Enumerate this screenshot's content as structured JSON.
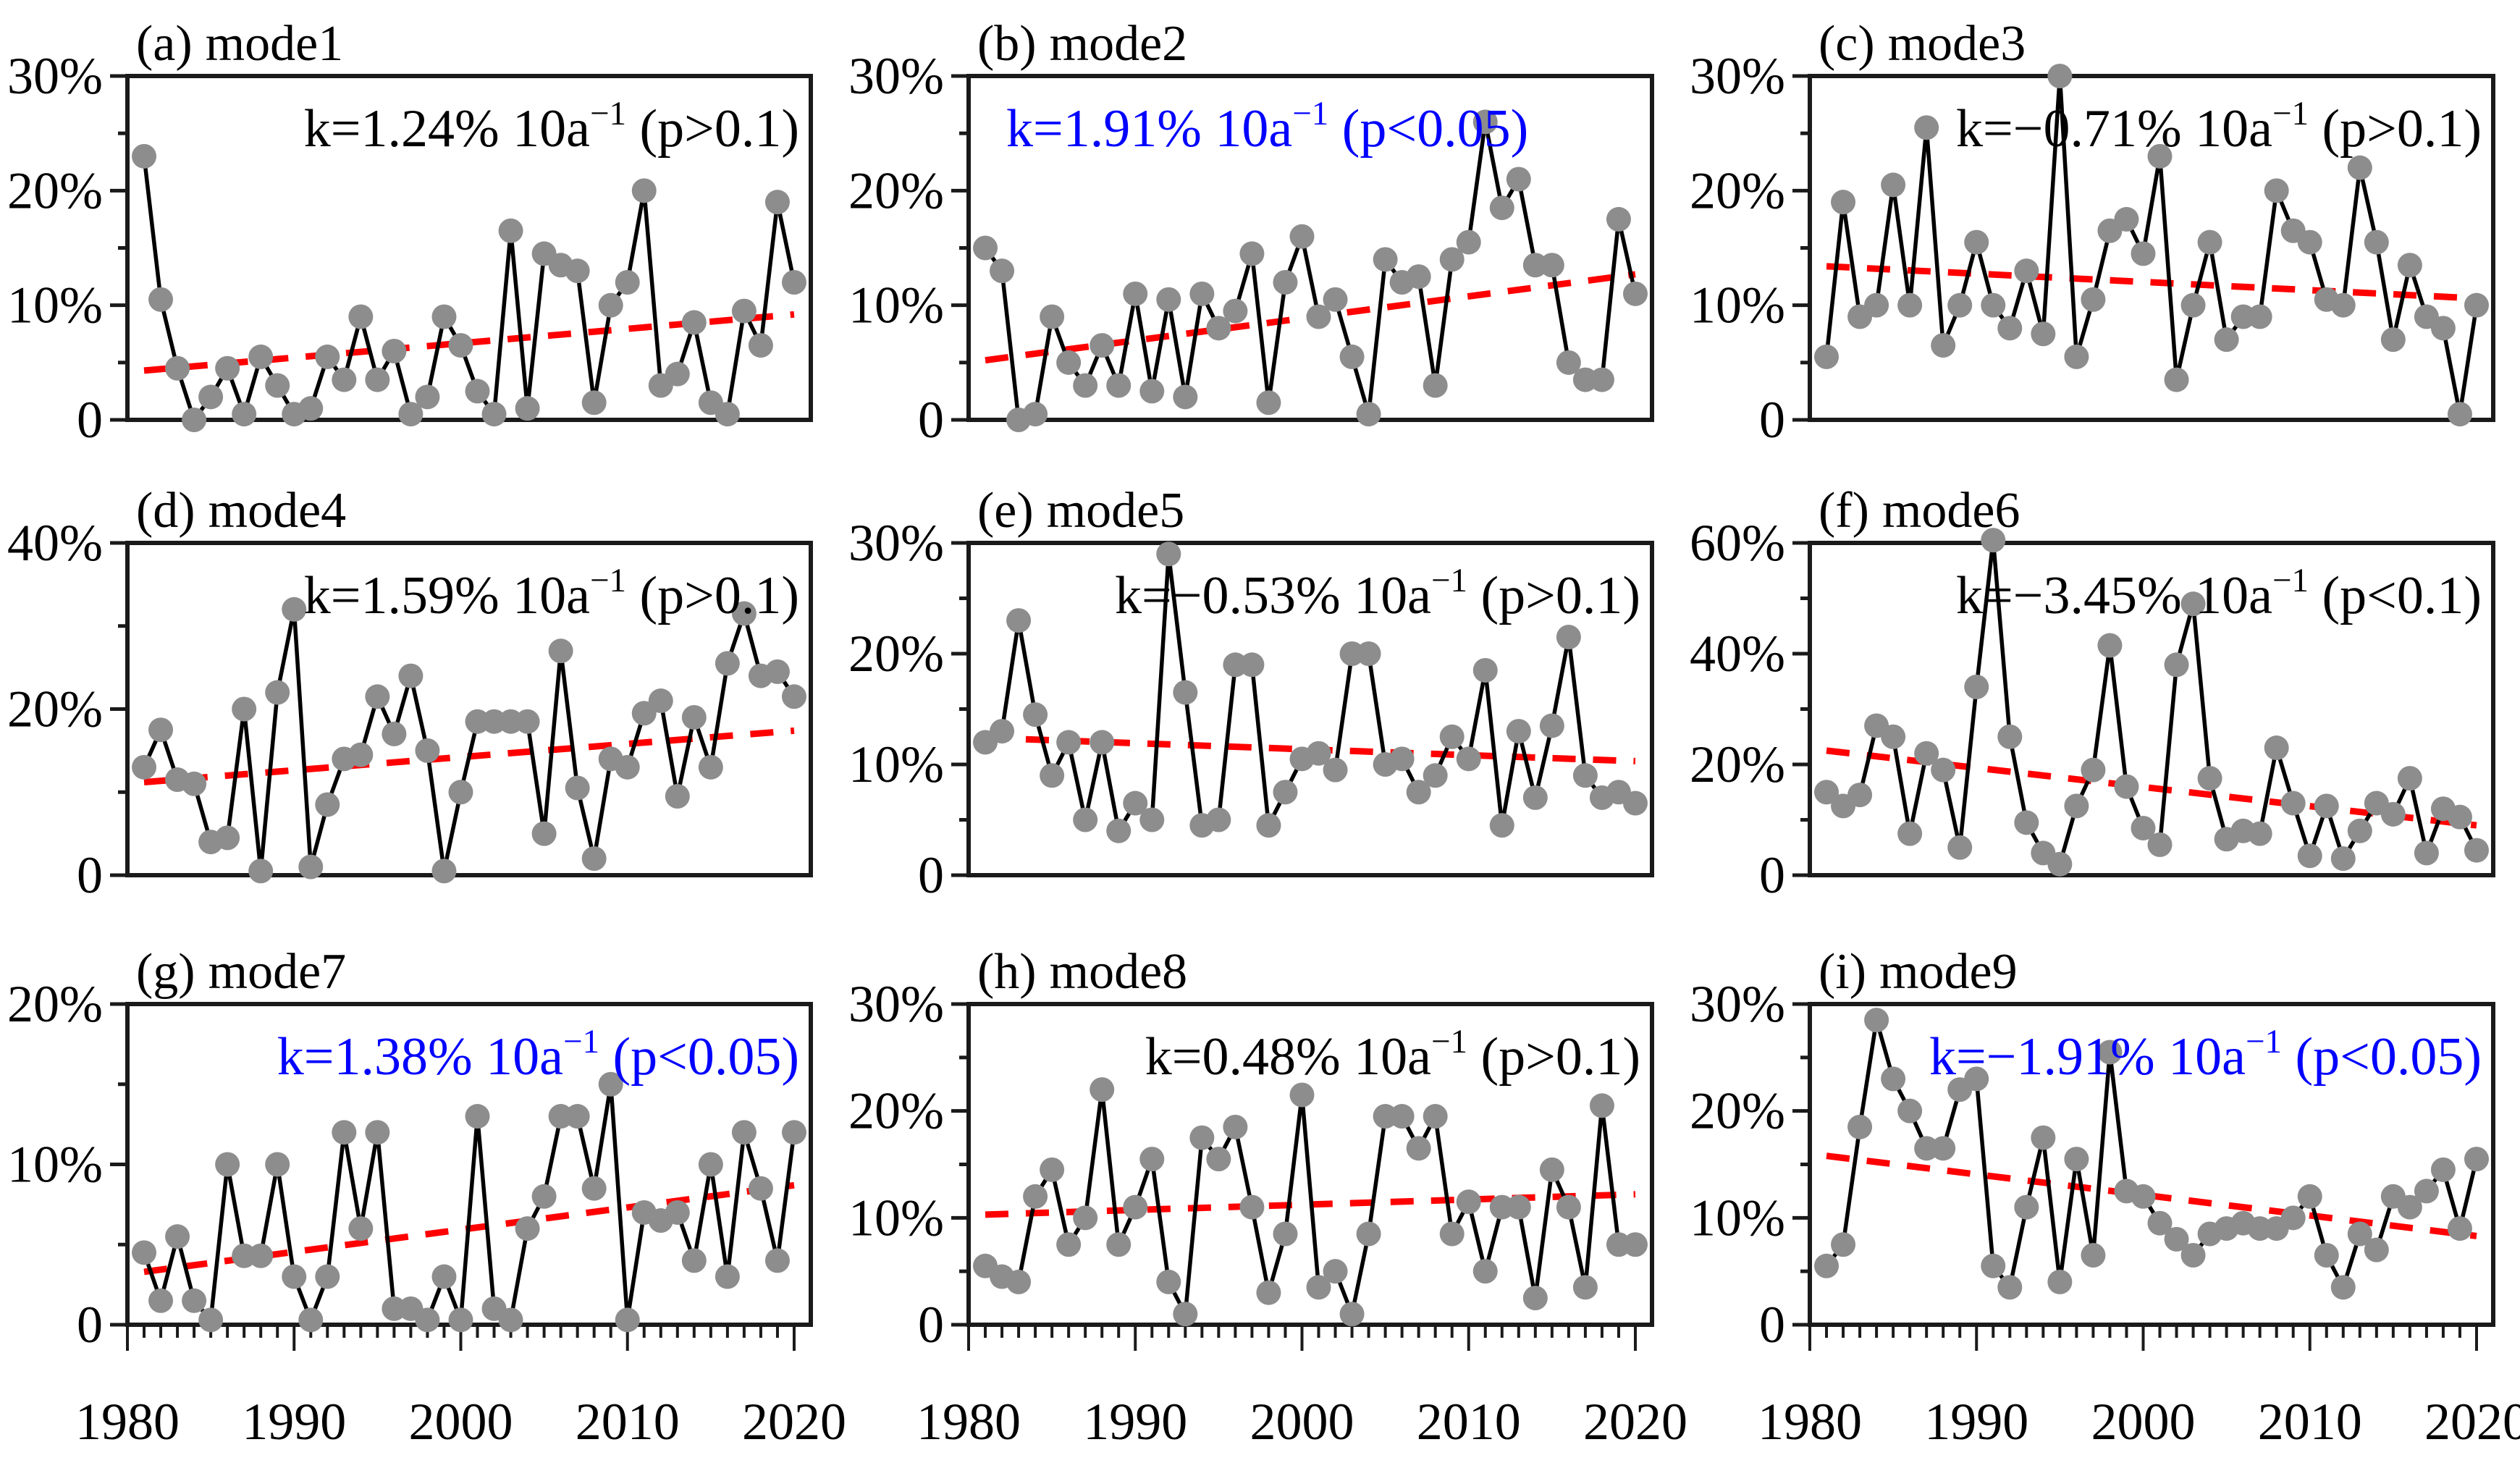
{
  "figure": {
    "background": "#ffffff",
    "dot_color": "#8d8d8d",
    "line_color": "#000000",
    "trend_color": "#ff0000",
    "axis_color": "#1a1a1a",
    "blue_annotation_color": "#0000ff",
    "black_annotation_color": "#000000"
  },
  "x_axis": {
    "domain": [
      1980,
      2021
    ],
    "data_years_start": 1981,
    "tick_years": [
      1980,
      1990,
      2000,
      2010,
      2020
    ],
    "tick_labels": [
      "1980",
      "1990",
      "2000",
      "2010",
      "2020"
    ]
  },
  "chart_data": [
    {
      "type": "line",
      "panel_label": "(a)",
      "title": "mode1",
      "annotation": {
        "k": "k=1.24% 10a",
        "sup": "−1",
        "p": " (p>0.1)",
        "color": "#000000",
        "align": "right"
      },
      "ylim": [
        0,
        30
      ],
      "yticks": [
        {
          "v": 0,
          "label": "0"
        },
        {
          "v": 10,
          "label": "10%"
        },
        {
          "v": 20,
          "label": "20%"
        },
        {
          "v": 30,
          "label": "30%"
        }
      ],
      "yminor": [
        5,
        15,
        25
      ],
      "trend": {
        "start": 4.3,
        "end": 9.2
      },
      "values": [
        23,
        10.5,
        4.5,
        0,
        2,
        4.5,
        0.5,
        5.5,
        3,
        0.5,
        1,
        5.5,
        3.5,
        9,
        3.5,
        6,
        0.5,
        2,
        9,
        6.5,
        2.5,
        0.5,
        16.5,
        1,
        14.5,
        13.5,
        13,
        1.5,
        10,
        12,
        20,
        3,
        4,
        8.5,
        1.5,
        0.5,
        9.5,
        6.5,
        19,
        12
      ]
    },
    {
      "type": "line",
      "panel_label": "(b)",
      "title": "mode2",
      "annotation": {
        "k": "k=1.91% 10a",
        "sup": "−1",
        "p": " (p<0.05)",
        "color": "#0000ff",
        "align": "left"
      },
      "ylim": [
        0,
        30
      ],
      "yticks": [
        {
          "v": 0,
          "label": "0"
        },
        {
          "v": 10,
          "label": "10%"
        },
        {
          "v": 20,
          "label": "20%"
        },
        {
          "v": 30,
          "label": "30%"
        }
      ],
      "yminor": [
        5,
        15,
        25
      ],
      "trend": {
        "start": 5.2,
        "end": 12.7
      },
      "values": [
        15,
        13,
        0,
        0.5,
        9,
        5,
        3,
        6.5,
        3,
        11,
        2.5,
        10.5,
        2,
        11,
        8,
        9.5,
        14.5,
        1.5,
        12,
        16,
        9,
        10.5,
        5.5,
        0.5,
        14,
        12,
        12.5,
        3,
        14,
        15.5,
        26,
        18.5,
        21,
        13.5,
        13.5,
        5,
        3.5,
        3.5,
        17.5,
        11
      ]
    },
    {
      "type": "line",
      "panel_label": "(c)",
      "title": "mode3",
      "annotation": {
        "k": "k=−0.71% 10a",
        "sup": "−1",
        "p": " (p>0.1)",
        "color": "#000000",
        "align": "right"
      },
      "ylim": [
        0,
        30
      ],
      "yticks": [
        {
          "v": 0,
          "label": "0"
        },
        {
          "v": 10,
          "label": "10%"
        },
        {
          "v": 20,
          "label": "20%"
        },
        {
          "v": 30,
          "label": "30%"
        }
      ],
      "yminor": [
        5,
        15,
        25
      ],
      "trend": {
        "start": 13.4,
        "end": 10.6
      },
      "values": [
        5.5,
        19,
        9,
        10,
        20.5,
        10,
        25.5,
        6.5,
        10,
        15.5,
        10,
        8,
        13,
        7.5,
        30,
        5.5,
        10.5,
        16.5,
        17.5,
        14.5,
        23,
        3.5,
        10,
        15.5,
        7,
        9,
        9,
        20,
        16.5,
        15.5,
        10.5,
        10,
        22,
        15.5,
        7,
        13.5,
        9,
        8,
        0.5,
        10
      ]
    },
    {
      "type": "line",
      "panel_label": "(d)",
      "title": "mode4",
      "annotation": {
        "k": "k=1.59% 10a",
        "sup": "−1",
        "p": " (p>0.1)",
        "color": "#000000",
        "align": "right"
      },
      "ylim": [
        0,
        40
      ],
      "yticks": [
        {
          "v": 0,
          "label": "0"
        },
        {
          "v": 20,
          "label": "20%"
        },
        {
          "v": 40,
          "label": "40%"
        }
      ],
      "yminor": [
        10,
        30
      ],
      "trend": {
        "start": 11.2,
        "end": 17.4
      },
      "values": [
        13,
        17.5,
        11.5,
        11,
        4,
        4.5,
        20,
        0.5,
        22,
        32,
        1,
        8.5,
        14,
        14.5,
        21.5,
        17,
        24,
        15,
        0.5,
        10,
        18.5,
        18.5,
        18.5,
        18.5,
        5,
        27,
        10.5,
        2,
        14,
        13,
        19.5,
        21,
        9.5,
        19,
        13,
        25.5,
        31.5,
        24,
        24.5,
        21.5
      ]
    },
    {
      "type": "line",
      "panel_label": "(e)",
      "title": "mode5",
      "annotation": {
        "k": "k=−0.53% 10a",
        "sup": "−1",
        "p": " (p>0.1)",
        "color": "#000000",
        "align": "right"
      },
      "ylim": [
        0,
        30
      ],
      "yticks": [
        {
          "v": 0,
          "label": "0"
        },
        {
          "v": 10,
          "label": "10%"
        },
        {
          "v": 20,
          "label": "20%"
        },
        {
          "v": 30,
          "label": "30%"
        }
      ],
      "yminor": [
        5,
        15,
        25
      ],
      "trend": {
        "start": 12.4,
        "end": 10.3
      },
      "values": [
        12,
        13,
        23,
        14.5,
        9,
        12,
        5,
        12,
        4,
        6.5,
        5,
        29,
        16.5,
        4.5,
        5,
        19,
        19,
        4.5,
        7.5,
        10.5,
        11,
        9.5,
        20,
        20,
        10,
        10.5,
        7.5,
        9,
        12.5,
        10.5,
        18.5,
        4.5,
        13,
        7,
        13.5,
        21.5,
        9,
        7,
        7.5,
        6.5
      ]
    },
    {
      "type": "line",
      "panel_label": "(f)",
      "title": "mode6",
      "annotation": {
        "k": "k=−3.45% 10a",
        "sup": "−1",
        "p": " (p<0.1)",
        "color": "#000000",
        "align": "right"
      },
      "ylim": [
        0,
        60
      ],
      "yticks": [
        {
          "v": 0,
          "label": "0"
        },
        {
          "v": 20,
          "label": "20%"
        },
        {
          "v": 40,
          "label": "40%"
        },
        {
          "v": 60,
          "label": "60%"
        }
      ],
      "yminor": [
        10,
        30,
        50
      ],
      "trend": {
        "start": 22.5,
        "end": 9.0
      },
      "values": [
        15,
        12.5,
        14.5,
        27,
        25,
        7.5,
        22,
        19,
        5,
        34,
        60.5,
        25,
        9.5,
        4,
        2,
        12.5,
        19,
        41.5,
        16,
        8.5,
        5.5,
        38,
        49,
        17.5,
        6.5,
        8,
        7.5,
        23,
        13,
        3.5,
        12.5,
        3,
        8,
        13,
        11,
        17.5,
        4,
        12,
        10.5,
        4.5
      ]
    },
    {
      "type": "line",
      "panel_label": "(g)",
      "title": "mode7",
      "annotation": {
        "k": "k=1.38% 10a",
        "sup": "−1",
        "p": " (p<0.05)",
        "color": "#0000ff",
        "align": "right"
      },
      "ylim": [
        0,
        20
      ],
      "yticks": [
        {
          "v": 0,
          "label": "0"
        },
        {
          "v": 10,
          "label": "10%"
        },
        {
          "v": 20,
          "label": "20%"
        }
      ],
      "yminor": [
        5,
        15
      ],
      "trend": {
        "start": 3.3,
        "end": 8.7
      },
      "values": [
        4.5,
        1.5,
        5.5,
        1.5,
        0.3,
        10,
        4.3,
        4.3,
        10,
        3,
        0.3,
        3,
        12,
        6,
        12,
        1,
        1,
        0.3,
        3,
        0.3,
        13,
        1,
        0.3,
        6,
        8,
        13,
        13,
        8.5,
        15,
        0.3,
        7,
        6.5,
        7,
        4,
        10,
        3,
        12,
        8.5,
        4,
        12
      ]
    },
    {
      "type": "line",
      "panel_label": "(h)",
      "title": "mode8",
      "annotation": {
        "k": "k=0.48% 10a",
        "sup": "−1",
        "p": " (p>0.1)",
        "color": "#000000",
        "align": "right"
      },
      "ylim": [
        0,
        30
      ],
      "yticks": [
        {
          "v": 0,
          "label": "0"
        },
        {
          "v": 10,
          "label": "10%"
        },
        {
          "v": 20,
          "label": "20%"
        },
        {
          "v": 30,
          "label": "30%"
        }
      ],
      "yminor": [
        5,
        15,
        25
      ],
      "trend": {
        "start": 10.3,
        "end": 12.2
      },
      "values": [
        5.5,
        4.5,
        4,
        12,
        14.5,
        7.5,
        10,
        22,
        7.5,
        11,
        15.5,
        4,
        1,
        17.5,
        15.5,
        18.5,
        11,
        3,
        8.5,
        21.5,
        3.5,
        5,
        1,
        8.5,
        19.5,
        19.5,
        16.5,
        19.5,
        8.5,
        11.5,
        5,
        11,
        11,
        2.5,
        14.5,
        11,
        3.5,
        20.5,
        7.5,
        7.5
      ]
    },
    {
      "type": "line",
      "panel_label": "(i)",
      "title": "mode9",
      "annotation": {
        "k": "k=−1.91% 10a",
        "sup": "−1",
        "p": " (p<0.05)",
        "color": "#0000ff",
        "align": "right"
      },
      "ylim": [
        0,
        30
      ],
      "yticks": [
        {
          "v": 0,
          "label": "0"
        },
        {
          "v": 10,
          "label": "10%"
        },
        {
          "v": 20,
          "label": "20%"
        },
        {
          "v": 30,
          "label": "30%"
        }
      ],
      "yminor": [
        5,
        15,
        25
      ],
      "trend": {
        "start": 15.8,
        "end": 8.3
      },
      "values": [
        5.5,
        7.5,
        18.5,
        28.5,
        23,
        20,
        16.5,
        16.5,
        22,
        23,
        5.5,
        3.5,
        11,
        17.5,
        4,
        15.5,
        6.5,
        25.5,
        12.5,
        12,
        9.5,
        8,
        6.5,
        8.5,
        9,
        9.5,
        9,
        9,
        10,
        12,
        6.5,
        3.5,
        8.5,
        7,
        12,
        11,
        12.5,
        14.5,
        9,
        15.5
      ]
    }
  ]
}
